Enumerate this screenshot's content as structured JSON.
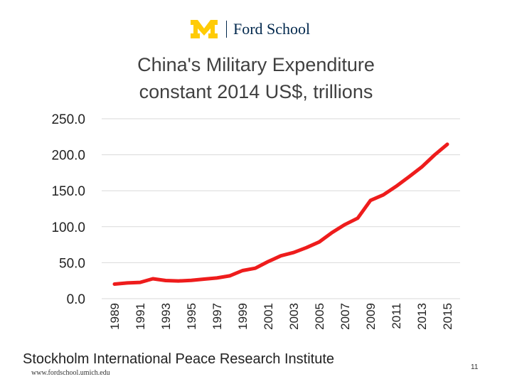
{
  "header": {
    "logo_text": "Ford School",
    "brand_color": "#ffcb05",
    "brand_navy": "#00274c"
  },
  "footer": {
    "source": "Stockholm International Peace Research Institute",
    "url": "www.fordschool.umich.edu",
    "page_number": "11"
  },
  "chart_data": {
    "type": "line",
    "title_line1": "China's Military Expenditure",
    "title_line2": "constant 2014 US$, trillions",
    "xlabel": "",
    "ylabel": "",
    "ylim": [
      0,
      250
    ],
    "yticks": [
      "0.0",
      "50.0",
      "100.0",
      "150.0",
      "200.0",
      "250.0"
    ],
    "ytick_values": [
      0,
      50,
      100,
      150,
      200,
      250
    ],
    "x_tick_labels": [
      "1989",
      "1991",
      "1993",
      "1995",
      "1997",
      "1999",
      "2001",
      "2003",
      "2005",
      "2007",
      "2009",
      "2011",
      "2013",
      "2015"
    ],
    "grid": true,
    "line_color": "#ee1c1c",
    "series": [
      {
        "name": "China's Military Expenditure",
        "x": [
          1989,
          1990,
          1991,
          1992,
          1993,
          1994,
          1995,
          1996,
          1997,
          1998,
          1999,
          2000,
          2001,
          2002,
          2003,
          2004,
          2005,
          2006,
          2007,
          2008,
          2009,
          2010,
          2011,
          2012,
          2013,
          2014,
          2015
        ],
        "values": [
          20.3,
          21.8,
          22.6,
          27.7,
          25.2,
          24.6,
          25.4,
          27.2,
          28.8,
          31.7,
          39.0,
          42.3,
          51.5,
          59.6,
          64.1,
          70.9,
          78.9,
          91.9,
          103.0,
          111.9,
          136.6,
          144.2,
          156.0,
          169.3,
          182.9,
          199.6,
          214.5
        ]
      }
    ]
  }
}
